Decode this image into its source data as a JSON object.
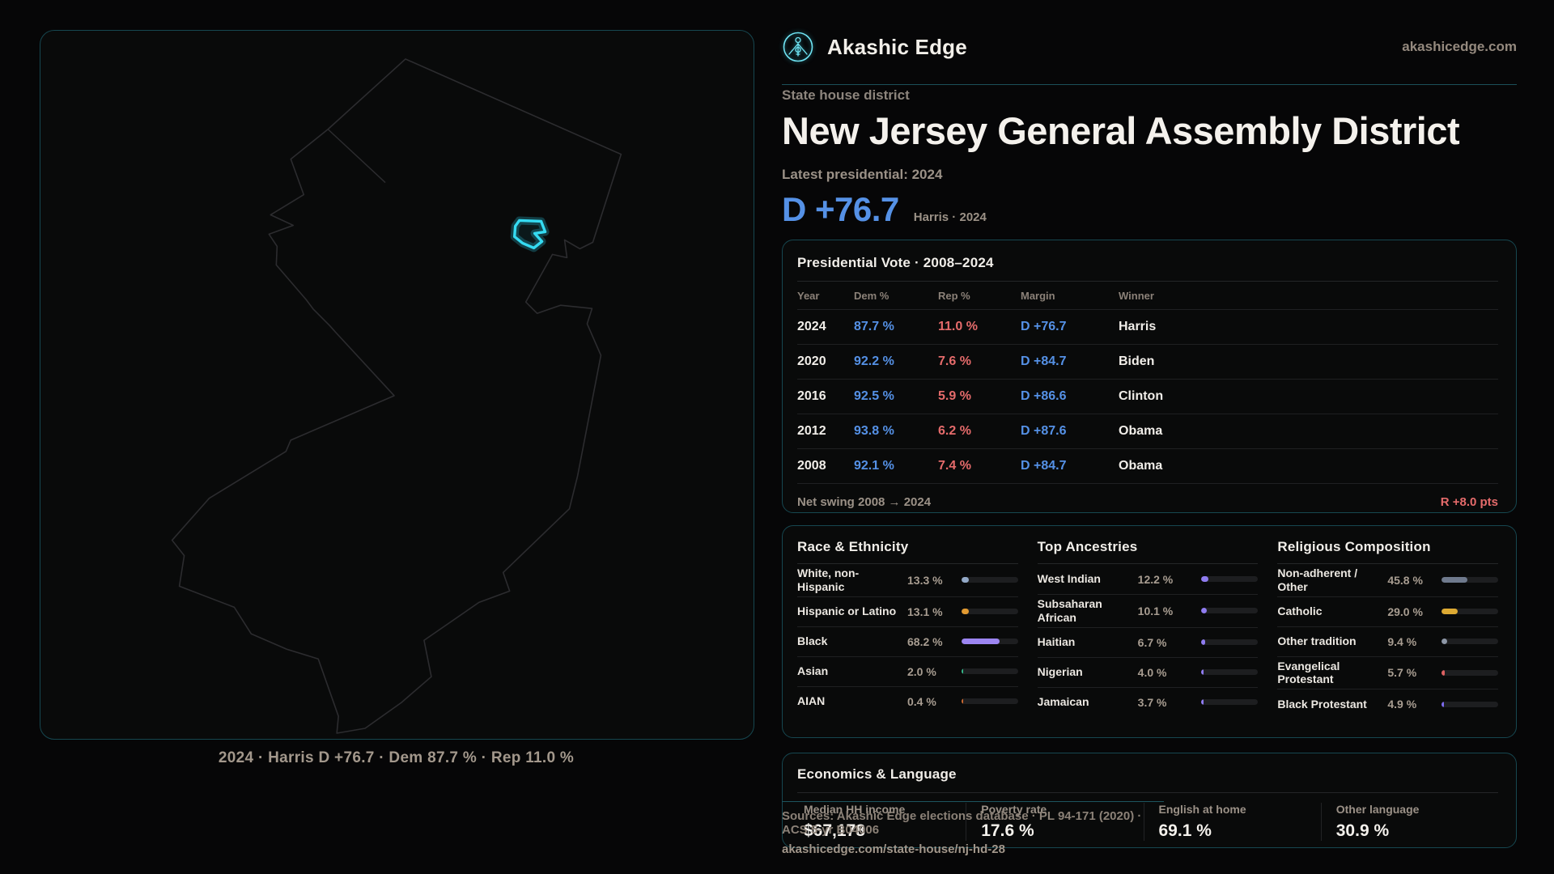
{
  "header": {
    "brand": "Akashic Edge",
    "domain": "akashicedge.com"
  },
  "hero": {
    "eyebrow": "State house district",
    "title": "New Jersey General Assembly District",
    "latest_label": "Latest presidential: 2024",
    "margin_value": "D +76.7",
    "margin_note": "Harris · 2024",
    "accent_blue": "#5591e6",
    "accent_red": "#e56b6b",
    "accent_cyan": "#35dbf2"
  },
  "map": {
    "caption": "2024 · Harris D +76.7 · Dem 87.7 % · Rep 11.0 %"
  },
  "pres_table": {
    "title": "Presidential Vote · 2008–2024",
    "columns": {
      "year": "Year",
      "dem": "Dem %",
      "rep": "Rep %",
      "margin": "Margin",
      "winner": "Winner"
    },
    "rows": [
      {
        "year": "2024",
        "dem": "87.7 %",
        "rep": "11.0 %",
        "margin": "D +76.7",
        "winner": "Harris"
      },
      {
        "year": "2020",
        "dem": "92.2 %",
        "rep": "7.6 %",
        "margin": "D +84.7",
        "winner": "Biden"
      },
      {
        "year": "2016",
        "dem": "92.5 %",
        "rep": "5.9 %",
        "margin": "D +86.6",
        "winner": "Clinton"
      },
      {
        "year": "2012",
        "dem": "93.8 %",
        "rep": "6.2 %",
        "margin": "D +87.6",
        "winner": "Obama"
      },
      {
        "year": "2008",
        "dem": "92.1 %",
        "rep": "7.4 %",
        "margin": "D +84.7",
        "winner": "Obama"
      }
    ],
    "net_swing_label": "Net swing 2008 → 2024",
    "net_swing_value": "R +8.0 pts"
  },
  "demographics": {
    "race": {
      "title": "Race & Ethnicity",
      "rows": [
        {
          "label": "White, non-Hispanic",
          "value": "13.3 %",
          "pct": 13.3,
          "color": "#93a9c7"
        },
        {
          "label": "Hispanic or Latino",
          "value": "13.1 %",
          "pct": 13.1,
          "color": "#e29a31"
        },
        {
          "label": "Black",
          "value": "68.2 %",
          "pct": 68.2,
          "color": "#9c85f2"
        },
        {
          "label": "Asian",
          "value": "2.0 %",
          "pct": 2.0,
          "color": "#35b98a"
        },
        {
          "label": "AIAN",
          "value": "0.4 %",
          "pct": 0.4,
          "color": "#cf6a31"
        }
      ]
    },
    "ancestries": {
      "title": "Top Ancestries",
      "rows": [
        {
          "label": "West Indian",
          "value": "12.2 %",
          "pct": 12.2,
          "color": "#8f7cf0"
        },
        {
          "label": "Subsaharan African",
          "value": "10.1 %",
          "pct": 10.1,
          "color": "#8f7cf0"
        },
        {
          "label": "Haitian",
          "value": "6.7 %",
          "pct": 6.7,
          "color": "#8f7cf0"
        },
        {
          "label": "Nigerian",
          "value": "4.0 %",
          "pct": 4.0,
          "color": "#8f7cf0"
        },
        {
          "label": "Jamaican",
          "value": "3.7 %",
          "pct": 3.7,
          "color": "#8f7cf0"
        }
      ]
    },
    "religion": {
      "title": "Religious Composition",
      "rows": [
        {
          "label": "Non-adherent / Other",
          "value": "45.8 %",
          "pct": 45.8,
          "color": "#6f7a8d"
        },
        {
          "label": "Catholic",
          "value": "29.0 %",
          "pct": 29.0,
          "color": "#ddaa33"
        },
        {
          "label": "Other tradition",
          "value": "9.4 %",
          "pct": 9.4,
          "color": "#8d97a6"
        },
        {
          "label": "Evangelical Protestant",
          "value": "5.7 %",
          "pct": 5.7,
          "color": "#dd6161"
        },
        {
          "label": "Black Protestant",
          "value": "4.9 %",
          "pct": 4.9,
          "color": "#7d6bee"
        }
      ]
    }
  },
  "economics": {
    "title": "Economics & Language",
    "stats": [
      {
        "label": "Median HH income",
        "value": "$67,178"
      },
      {
        "label": "Poverty rate",
        "value": "17.6 %"
      },
      {
        "label": "English at home",
        "value": "69.1 %"
      },
      {
        "label": "Other language",
        "value": "30.9 %"
      }
    ]
  },
  "footer": {
    "sources": "Sources: Akashic Edge elections database · PL 94-171 (2020) · ACS 5-yr B04006",
    "permalink": "akashicedge.com/state-house/nj-hd-28"
  }
}
